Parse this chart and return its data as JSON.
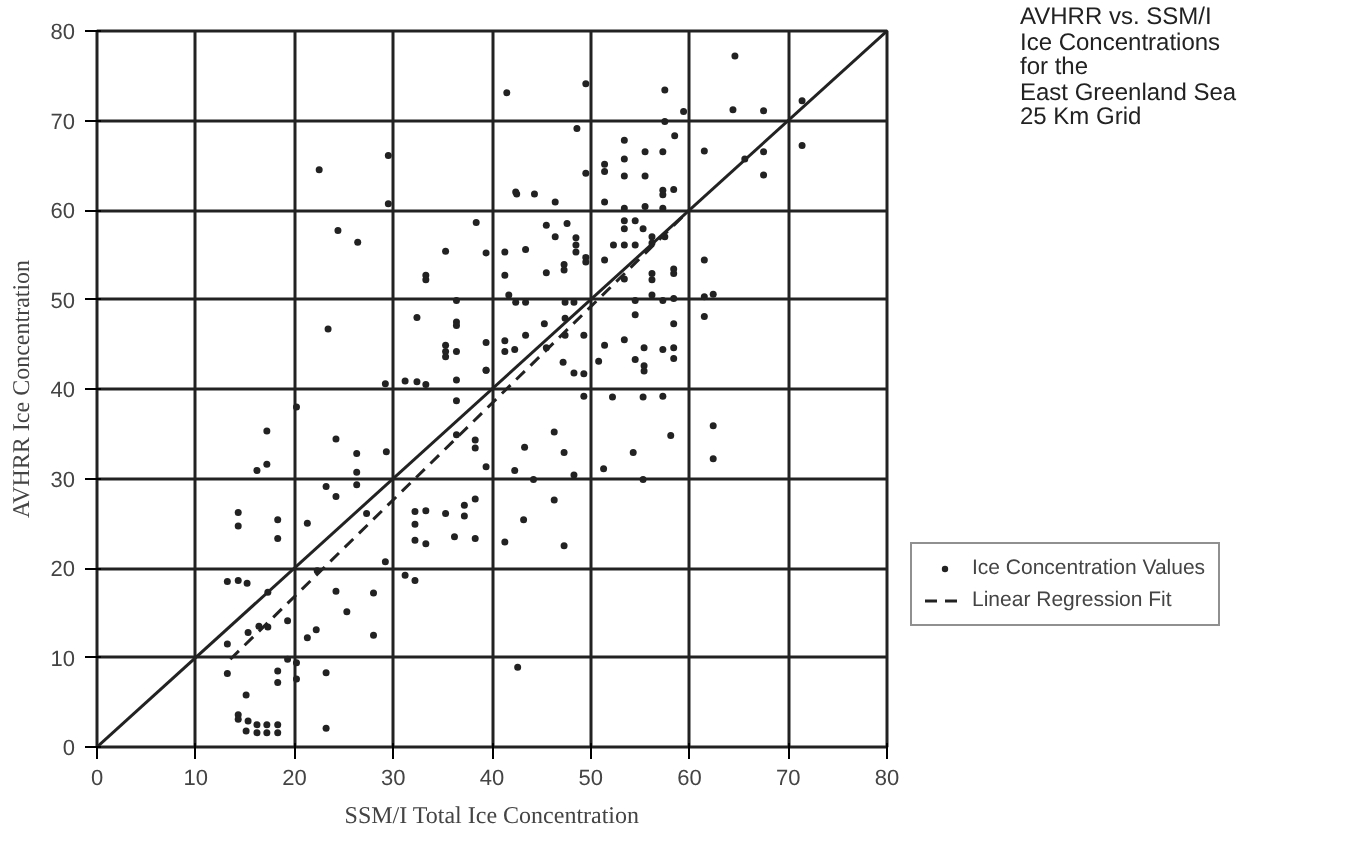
{
  "chart_data": {
    "type": "scatter",
    "title": "AVHRR vs. SSM/I\nIce Concentrations\nfor the\nEast Greenland Sea\n25 Km Grid",
    "xlabel": "SSM/I Total Ice Concentration",
    "ylabel": "AVHRR Ice Concentration",
    "xlim": [
      0,
      80
    ],
    "ylim": [
      0,
      80
    ],
    "xticks": [
      0,
      10,
      20,
      30,
      40,
      50,
      60,
      70,
      80
    ],
    "yticks": [
      0,
      10,
      20,
      30,
      40,
      50,
      60,
      70,
      80
    ],
    "grid": true,
    "legend": "right",
    "series": [
      {
        "name": "Ice Concentration Values",
        "marker": "circle",
        "color": "#222222",
        "x": [
          41.5,
          29.5,
          22.5,
          29.5,
          42.5,
          24.4,
          26.4,
          38.4,
          35.3,
          39.4,
          41.3,
          33.3,
          33.3,
          41.3,
          36.4,
          32.4,
          36.4,
          36.4,
          23.4,
          35.3,
          35.3,
          35.3,
          36.4,
          39.4,
          39.4,
          41.3,
          41.3,
          42.3,
          64.6,
          49.5,
          57.5,
          59.4,
          64.4,
          67.5,
          71.4,
          71.4,
          48.6,
          57.5,
          53.4,
          58.5,
          55.5,
          57.3,
          51.4,
          51.4,
          53.4,
          53.4,
          55.5,
          49.5,
          61.5,
          65.6,
          67.5,
          67.5,
          42.4,
          44.3,
          46.4,
          57.3,
          57.3,
          58.4,
          51.4,
          53.4,
          55.5,
          57.3,
          45.5,
          47.6,
          53.4,
          54.5,
          53.4,
          55.3,
          43.4,
          46.4,
          48.5,
          48.5,
          48.5,
          49.5,
          49.5,
          52.3,
          53.4,
          54.5,
          56.2,
          56.2,
          57.5,
          51.4,
          47.3,
          47.3,
          45.5,
          61.5,
          53.4,
          56.2,
          56.2,
          58.4,
          58.4,
          41.7,
          42.4,
          43.4,
          47.4,
          48.3,
          54.5,
          54.5,
          56.2,
          57.3,
          58.4,
          61.5,
          62.4,
          61.5,
          45.3,
          47.4,
          47.4,
          49.3,
          58.4,
          58.4,
          55.4,
          53.4,
          51.4,
          54.5,
          55.4,
          55.4,
          58.4,
          57.3,
          49.3,
          48.3,
          47.2,
          50.8,
          45.5,
          43.4,
          29.2,
          31.2,
          32.4,
          33.3,
          36.4,
          36.4,
          39.4,
          17.2,
          17.2,
          16.2,
          24.2,
          26.3,
          26.3,
          26.3,
          29.3,
          23.2,
          24.2,
          14.3,
          14.3,
          18.3,
          18.3,
          21.3,
          27.3,
          32.2,
          32.2,
          32.2,
          33.3,
          33.3,
          35.3,
          37.2,
          37.2,
          36.2,
          38.3,
          38.3,
          38.3,
          38.3,
          36.4,
          39.4,
          41.3,
          29.2,
          31.2,
          32.2,
          13.2,
          14.3,
          15.2,
          17.3,
          22.3,
          24.2,
          25.3,
          28.0,
          16.4,
          15.3,
          17.3,
          19.3,
          22.2,
          21.3,
          28.0,
          13.2,
          13.2,
          19.3,
          20.2,
          20.2,
          18.3,
          18.3,
          23.2,
          15.1,
          14.3,
          14.3,
          15.3,
          16.2,
          17.2,
          18.3,
          15.1,
          16.2,
          17.2,
          18.3,
          23.2,
          20.2,
          42.6,
          43.3,
          47.3,
          46.3,
          51.3,
          54.3,
          58.1,
          62.4,
          62.4,
          55.3,
          43.2,
          46.3,
          47.3,
          44.2,
          48.3,
          42.3,
          49.3,
          52.2,
          55.3,
          57.3
        ],
        "values": [
          73.1,
          66.1,
          64.5,
          60.7,
          61.8,
          57.7,
          56.4,
          58.6,
          55.4,
          55.2,
          55.3,
          52.7,
          52.2,
          52.7,
          49.9,
          48.0,
          47.5,
          47.1,
          46.7,
          44.9,
          44.2,
          43.6,
          44.2,
          45.2,
          42.1,
          45.4,
          44.2,
          44.4,
          77.2,
          74.1,
          73.4,
          71.0,
          71.2,
          71.1,
          72.2,
          67.2,
          69.1,
          69.9,
          67.8,
          68.3,
          66.5,
          66.5,
          65.1,
          64.3,
          65.7,
          63.8,
          63.8,
          64.1,
          66.6,
          65.7,
          66.5,
          63.9,
          62.0,
          61.8,
          60.9,
          62.2,
          61.7,
          62.3,
          60.9,
          60.2,
          60.4,
          60.2,
          58.3,
          58.5,
          58.8,
          58.8,
          57.9,
          57.9,
          55.6,
          57.0,
          56.9,
          56.1,
          55.3,
          54.7,
          54.2,
          56.1,
          56.1,
          56.1,
          57.0,
          56.3,
          57.0,
          54.4,
          53.9,
          53.3,
          53.0,
          54.4,
          52.3,
          52.9,
          52.2,
          53.4,
          52.9,
          50.5,
          49.7,
          49.7,
          49.7,
          49.7,
          49.9,
          48.3,
          50.5,
          49.9,
          50.1,
          50.3,
          50.6,
          48.1,
          47.3,
          47.9,
          46.0,
          46.0,
          47.3,
          44.6,
          44.6,
          45.5,
          44.9,
          43.3,
          42.6,
          42.0,
          43.4,
          44.4,
          41.7,
          41.8,
          43.0,
          43.1,
          44.6,
          46.0,
          40.6,
          40.9,
          40.8,
          40.5,
          41.0,
          38.7,
          42.1,
          35.3,
          31.6,
          30.9,
          34.4,
          32.8,
          30.7,
          29.3,
          33.0,
          29.1,
          28.0,
          26.2,
          24.7,
          25.4,
          23.3,
          25.0,
          26.1,
          26.3,
          24.9,
          23.1,
          26.4,
          22.7,
          26.1,
          27.0,
          25.8,
          23.5,
          23.3,
          27.7,
          33.4,
          34.3,
          34.9,
          31.3,
          22.9,
          20.7,
          19.2,
          18.6,
          18.5,
          18.6,
          18.3,
          17.3,
          19.7,
          17.4,
          15.1,
          17.2,
          13.5,
          12.8,
          13.4,
          14.1,
          13.1,
          12.2,
          12.5,
          11.5,
          8.2,
          9.8,
          7.6,
          9.4,
          8.5,
          7.2,
          8.3,
          5.8,
          3.6,
          3.1,
          2.9,
          2.5,
          2.5,
          2.5,
          1.8,
          1.6,
          1.6,
          1.6,
          2.1,
          38.0,
          8.9,
          33.5,
          32.9,
          35.2,
          31.1,
          32.9,
          34.8,
          32.2,
          35.9,
          29.9,
          25.4,
          27.6,
          22.5,
          29.9,
          30.4,
          30.9,
          39.2,
          39.1,
          39.1,
          39.2
        ]
      },
      {
        "name": "Linear Regression Fit",
        "type": "line",
        "line_style": "dashed",
        "color": "#222222",
        "x": [
          13.5,
          60
        ],
        "values": [
          9.8,
          60
        ]
      },
      {
        "type": "line",
        "line_style": "solid",
        "color": "#222222",
        "x": [
          0,
          80
        ],
        "values": [
          0,
          80
        ]
      }
    ]
  }
}
